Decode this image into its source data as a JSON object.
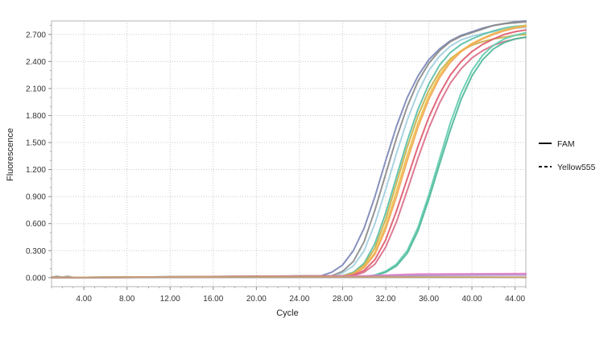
{
  "chart_data": {
    "type": "line",
    "title": "",
    "xlabel": "Cycle",
    "ylabel": "Fluorescence",
    "xlim": [
      1,
      45
    ],
    "ylim": [
      -0.1,
      2.85
    ],
    "grid": true,
    "legend_placement": "right",
    "x_ticks": [
      4,
      8,
      12,
      16,
      20,
      24,
      28,
      32,
      36,
      40,
      44
    ],
    "x_tick_labels": [
      "4.00",
      "8.00",
      "12.00",
      "16.00",
      "20.00",
      "24.00",
      "28.00",
      "32.00",
      "36.00",
      "40.00",
      "44.00"
    ],
    "y_ticks": [
      0,
      0.3,
      0.6,
      0.9,
      1.2,
      1.5,
      1.8,
      2.1,
      2.4,
      2.7
    ],
    "y_tick_labels": [
      "0.000",
      "0.300",
      "0.600",
      "0.900",
      "1.200",
      "1.500",
      "1.800",
      "2.100",
      "2.400",
      "2.700"
    ],
    "legend": [
      {
        "label": "FAM",
        "style": "solid"
      },
      {
        "label": "Yellow555",
        "style": "dashed"
      }
    ],
    "series": [
      {
        "color": "#7b87b8",
        "x": [
          1,
          26,
          27,
          28,
          29,
          30,
          31,
          32,
          33,
          34,
          35,
          36,
          37,
          38,
          39,
          40,
          41,
          42,
          43,
          44,
          45
        ],
        "y": [
          0.0,
          0.02,
          0.06,
          0.14,
          0.3,
          0.55,
          0.9,
          1.3,
          1.68,
          2.0,
          2.24,
          2.42,
          2.54,
          2.63,
          2.69,
          2.73,
          2.77,
          2.8,
          2.82,
          2.84,
          2.85
        ]
      },
      {
        "color": "#8a8a8a",
        "x": [
          1,
          27,
          28,
          29,
          30,
          31,
          32,
          33,
          34,
          35,
          36,
          37,
          38,
          39,
          40,
          41,
          42,
          43,
          44,
          45
        ],
        "y": [
          0.0,
          0.02,
          0.07,
          0.18,
          0.4,
          0.75,
          1.15,
          1.55,
          1.9,
          2.18,
          2.38,
          2.52,
          2.62,
          2.68,
          2.72,
          2.76,
          2.8,
          2.82,
          2.83,
          2.84
        ]
      },
      {
        "color": "#a3cfe0",
        "x": [
          1,
          27,
          28,
          29,
          30,
          31,
          32,
          33,
          34,
          35,
          36,
          37,
          38,
          39,
          40,
          41,
          42,
          43,
          44,
          45
        ],
        "y": [
          0.0,
          0.01,
          0.05,
          0.13,
          0.3,
          0.6,
          0.98,
          1.38,
          1.75,
          2.06,
          2.3,
          2.46,
          2.57,
          2.64,
          2.68,
          2.71,
          2.73,
          2.75,
          2.77,
          2.78
        ]
      },
      {
        "color": "#5bbfa8",
        "x": [
          1,
          28,
          29,
          30,
          31,
          32,
          33,
          34,
          35,
          36,
          37,
          38,
          39,
          40,
          41,
          42,
          43,
          44,
          45
        ],
        "y": [
          0.0,
          0.02,
          0.06,
          0.16,
          0.38,
          0.72,
          1.12,
          1.52,
          1.87,
          2.15,
          2.36,
          2.5,
          2.59,
          2.65,
          2.7,
          2.74,
          2.77,
          2.79,
          2.8
        ]
      },
      {
        "color": "#c7b04a",
        "x": [
          1,
          28,
          29,
          30,
          31,
          32,
          33,
          34,
          35,
          36,
          37,
          38,
          39,
          40,
          41,
          42,
          43,
          44,
          45
        ],
        "y": [
          0.0,
          0.02,
          0.05,
          0.14,
          0.33,
          0.65,
          1.05,
          1.45,
          1.8,
          2.08,
          2.29,
          2.43,
          2.52,
          2.58,
          2.62,
          2.65,
          2.67,
          2.69,
          2.7
        ]
      },
      {
        "color": "#f0c24a",
        "x": [
          1,
          28,
          29,
          30,
          31,
          32,
          33,
          34,
          35,
          36,
          37,
          38,
          39,
          40,
          41,
          42,
          43,
          44,
          45
        ],
        "y": [
          0.0,
          0.01,
          0.04,
          0.12,
          0.28,
          0.58,
          0.96,
          1.36,
          1.72,
          2.02,
          2.25,
          2.41,
          2.52,
          2.6,
          2.66,
          2.71,
          2.75,
          2.78,
          2.8
        ]
      },
      {
        "color": "#f2a85a",
        "x": [
          1,
          28,
          29,
          30,
          31,
          32,
          33,
          34,
          35,
          36,
          37,
          38,
          39,
          40,
          41,
          42,
          43,
          44,
          45
        ],
        "y": [
          0.0,
          0.01,
          0.04,
          0.11,
          0.26,
          0.54,
          0.9,
          1.3,
          1.67,
          1.98,
          2.22,
          2.39,
          2.51,
          2.59,
          2.65,
          2.7,
          2.74,
          2.77,
          2.79
        ]
      },
      {
        "color": "#e05a6e",
        "x": [
          1,
          28,
          29,
          30,
          31,
          32,
          33,
          34,
          35,
          36,
          37,
          38,
          39,
          40,
          41,
          42,
          43,
          44,
          45
        ],
        "y": [
          0.0,
          0.01,
          0.03,
          0.08,
          0.2,
          0.42,
          0.74,
          1.1,
          1.46,
          1.78,
          2.04,
          2.25,
          2.4,
          2.51,
          2.59,
          2.65,
          2.7,
          2.73,
          2.75
        ]
      },
      {
        "color": "#d9708a",
        "x": [
          1,
          29,
          30,
          31,
          32,
          33,
          34,
          35,
          36,
          37,
          38,
          39,
          40,
          41,
          42,
          43,
          44,
          45
        ],
        "y": [
          0.0,
          0.02,
          0.06,
          0.15,
          0.34,
          0.62,
          0.97,
          1.33,
          1.66,
          1.94,
          2.16,
          2.32,
          2.44,
          2.52,
          2.58,
          2.62,
          2.65,
          2.67
        ]
      },
      {
        "color": "#62ccb0",
        "x": [
          1,
          30,
          31,
          32,
          33,
          34,
          35,
          36,
          37,
          38,
          39,
          40,
          41,
          42,
          43,
          44,
          45
        ],
        "y": [
          0.0,
          0.01,
          0.03,
          0.07,
          0.15,
          0.3,
          0.56,
          0.92,
          1.32,
          1.72,
          2.05,
          2.3,
          2.47,
          2.58,
          2.65,
          2.69,
          2.72
        ]
      },
      {
        "color": "#4fb89a",
        "x": [
          1,
          30,
          31,
          32,
          33,
          34,
          35,
          36,
          37,
          38,
          39,
          40,
          41,
          42,
          43,
          44,
          45
        ],
        "y": [
          0.0,
          0.01,
          0.02,
          0.06,
          0.13,
          0.27,
          0.52,
          0.87,
          1.26,
          1.64,
          1.98,
          2.24,
          2.42,
          2.54,
          2.61,
          2.65,
          2.67
        ]
      },
      {
        "color": "#e879c8",
        "x": [
          1,
          25,
          30,
          35,
          45
        ],
        "y": [
          0.0,
          0.01,
          0.02,
          0.04,
          0.045
        ]
      },
      {
        "color": "#b08fc8",
        "x": [
          1,
          25,
          30,
          35,
          45
        ],
        "y": [
          0.0,
          0.005,
          0.01,
          0.025,
          0.03
        ]
      },
      {
        "color": "#9c9c9c",
        "x": [
          1,
          1.5,
          2,
          2.5,
          3,
          45
        ],
        "y": [
          0.005,
          0.015,
          0.005,
          0.015,
          0.003,
          0.003
        ]
      },
      {
        "color": "#c9a070",
        "x": [
          1,
          14,
          20,
          24,
          45
        ],
        "y": [
          0.002,
          0.006,
          0.01,
          0.01,
          0.005
        ]
      }
    ]
  }
}
